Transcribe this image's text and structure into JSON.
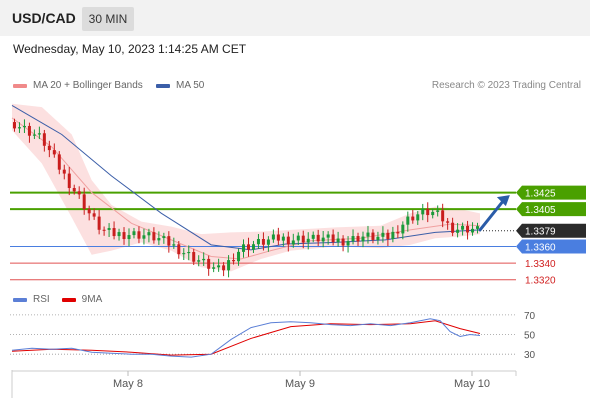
{
  "header": {
    "symbol": "USD/CAD",
    "timeframe": "30 MIN"
  },
  "datetime": "Wednesday, May 10, 2023 1:14:25 AM CET",
  "legend": {
    "bollinger": {
      "label": "MA 20 + Bollinger Bands",
      "color": "#f08a8a"
    },
    "ma50": {
      "label": "MA 50",
      "color": "#3b5ea8"
    }
  },
  "credit": "Research © 2023 Trading Central",
  "rsi_legend": {
    "rsi": {
      "label": "RSI",
      "color": "#5b7fd6"
    },
    "ma9": {
      "label": "9MA",
      "color": "#e00000"
    }
  },
  "colors": {
    "up": "#1a9a3a",
    "down": "#c91e1e",
    "resistance": "#4aa000",
    "pivot": "#4a7ee0",
    "support": "#e05050",
    "arrow": "#2a5ca8",
    "last": "#2b2b2b"
  },
  "chart_data": [
    {
      "type": "candlestick",
      "title": "",
      "x_ticks": [
        "May 8",
        "May 9",
        "May 10"
      ],
      "ylim": [
        1.331,
        1.3545
      ],
      "last_price": "1.3379",
      "levels": [
        {
          "label": "1.3425",
          "value": 1.3425,
          "kind": "resistance"
        },
        {
          "label": "1.3405",
          "value": 1.3405,
          "kind": "resistance"
        },
        {
          "label": "1.3360",
          "value": 1.336,
          "kind": "pivot"
        },
        {
          "label": "1.3340",
          "value": 1.334,
          "kind": "support"
        },
        {
          "label": "1.3320",
          "value": 1.332,
          "kind": "support"
        }
      ],
      "close_path": [
        [
          0,
          1.351
        ],
        [
          6,
          1.35
        ],
        [
          12,
          1.349
        ],
        [
          16,
          1.347
        ],
        [
          20,
          1.345
        ],
        [
          24,
          1.3432
        ],
        [
          28,
          1.3415
        ],
        [
          32,
          1.3395
        ],
        [
          36,
          1.338
        ],
        [
          40,
          1.3375
        ],
        [
          44,
          1.3375
        ],
        [
          48,
          1.3375
        ],
        [
          52,
          1.3374
        ],
        [
          56,
          1.3372
        ],
        [
          60,
          1.3368
        ],
        [
          64,
          1.3362
        ],
        [
          68,
          1.3355
        ],
        [
          72,
          1.3348
        ],
        [
          76,
          1.3342
        ],
        [
          80,
          1.3335
        ],
        [
          84,
          1.333
        ],
        [
          88,
          1.3345
        ],
        [
          92,
          1.3358
        ],
        [
          96,
          1.3362
        ],
        [
          100,
          1.3365
        ],
        [
          104,
          1.3368
        ],
        [
          108,
          1.337
        ],
        [
          112,
          1.3368
        ],
        [
          116,
          1.337
        ],
        [
          120,
          1.3369
        ],
        [
          124,
          1.337
        ],
        [
          128,
          1.3368
        ],
        [
          132,
          1.3367
        ],
        [
          136,
          1.3368
        ],
        [
          140,
          1.3372
        ],
        [
          144,
          1.3372
        ],
        [
          148,
          1.337
        ],
        [
          152,
          1.3372
        ],
        [
          156,
          1.3385
        ],
        [
          160,
          1.3395
        ],
        [
          164,
          1.34
        ],
        [
          168,
          1.3402
        ],
        [
          172,
          1.3396
        ],
        [
          176,
          1.3383
        ],
        [
          180,
          1.3381
        ],
        [
          184,
          1.3382
        ],
        [
          188,
          1.3379
        ]
      ],
      "ma50_path": [
        [
          0,
          1.353
        ],
        [
          20,
          1.3495
        ],
        [
          40,
          1.3445
        ],
        [
          60,
          1.34
        ],
        [
          80,
          1.3362
        ],
        [
          96,
          1.3356
        ],
        [
          110,
          1.3363
        ],
        [
          130,
          1.3365
        ],
        [
          150,
          1.3368
        ],
        [
          170,
          1.3377
        ],
        [
          188,
          1.338
        ]
      ],
      "ma20_path": [
        [
          0,
          1.3515
        ],
        [
          16,
          1.348
        ],
        [
          32,
          1.3425
        ],
        [
          48,
          1.3388
        ],
        [
          64,
          1.3368
        ],
        [
          80,
          1.3348
        ],
        [
          92,
          1.3345
        ],
        [
          104,
          1.3355
        ],
        [
          120,
          1.3367
        ],
        [
          140,
          1.337
        ],
        [
          160,
          1.338
        ],
        [
          176,
          1.3387
        ],
        [
          188,
          1.3385
        ]
      ],
      "band_upper": [
        [
          0,
          1.3532
        ],
        [
          12,
          1.3528
        ],
        [
          24,
          1.3495
        ],
        [
          32,
          1.344
        ],
        [
          40,
          1.341
        ],
        [
          52,
          1.339
        ],
        [
          64,
          1.3384
        ],
        [
          76,
          1.3375
        ],
        [
          88,
          1.3377
        ],
        [
          100,
          1.3378
        ],
        [
          112,
          1.338
        ],
        [
          130,
          1.3383
        ],
        [
          148,
          1.3385
        ],
        [
          160,
          1.34
        ],
        [
          170,
          1.3408
        ],
        [
          180,
          1.3405
        ],
        [
          188,
          1.34
        ]
      ],
      "band_lower": [
        [
          0,
          1.35
        ],
        [
          12,
          1.346
        ],
        [
          24,
          1.3395
        ],
        [
          32,
          1.335
        ],
        [
          40,
          1.3355
        ],
        [
          52,
          1.3365
        ],
        [
          64,
          1.3355
        ],
        [
          76,
          1.3335
        ],
        [
          88,
          1.333
        ],
        [
          100,
          1.3345
        ],
        [
          112,
          1.3355
        ],
        [
          130,
          1.336
        ],
        [
          148,
          1.3358
        ],
        [
          160,
          1.3362
        ],
        [
          170,
          1.337
        ],
        [
          180,
          1.3372
        ],
        [
          188,
          1.3375
        ]
      ],
      "forecast": {
        "from": [
          188,
          1.338
        ],
        "to": [
          200,
          1.3422
        ]
      }
    },
    {
      "type": "line",
      "title": "RSI",
      "ylim": [
        18,
        80
      ],
      "y_ticks": [
        70,
        50,
        30
      ],
      "rsi_path": [
        [
          0,
          34
        ],
        [
          8,
          36
        ],
        [
          16,
          35
        ],
        [
          24,
          36
        ],
        [
          32,
          32
        ],
        [
          40,
          31
        ],
        [
          48,
          30
        ],
        [
          56,
          30
        ],
        [
          64,
          28
        ],
        [
          72,
          27
        ],
        [
          80,
          30
        ],
        [
          88,
          45
        ],
        [
          96,
          57
        ],
        [
          104,
          62
        ],
        [
          112,
          63
        ],
        [
          120,
          62
        ],
        [
          128,
          60
        ],
        [
          136,
          59
        ],
        [
          144,
          61
        ],
        [
          152,
          59
        ],
        [
          160,
          62
        ],
        [
          168,
          66
        ],
        [
          172,
          64
        ],
        [
          176,
          53
        ],
        [
          180,
          48
        ],
        [
          184,
          50
        ],
        [
          188,
          49
        ]
      ],
      "ma9_path": [
        [
          0,
          33
        ],
        [
          16,
          35
        ],
        [
          32,
          34
        ],
        [
          48,
          32
        ],
        [
          64,
          29
        ],
        [
          80,
          30
        ],
        [
          96,
          46
        ],
        [
          112,
          58
        ],
        [
          128,
          61
        ],
        [
          144,
          60
        ],
        [
          160,
          61
        ],
        [
          170,
          64
        ],
        [
          180,
          56
        ],
        [
          188,
          51
        ]
      ]
    }
  ]
}
